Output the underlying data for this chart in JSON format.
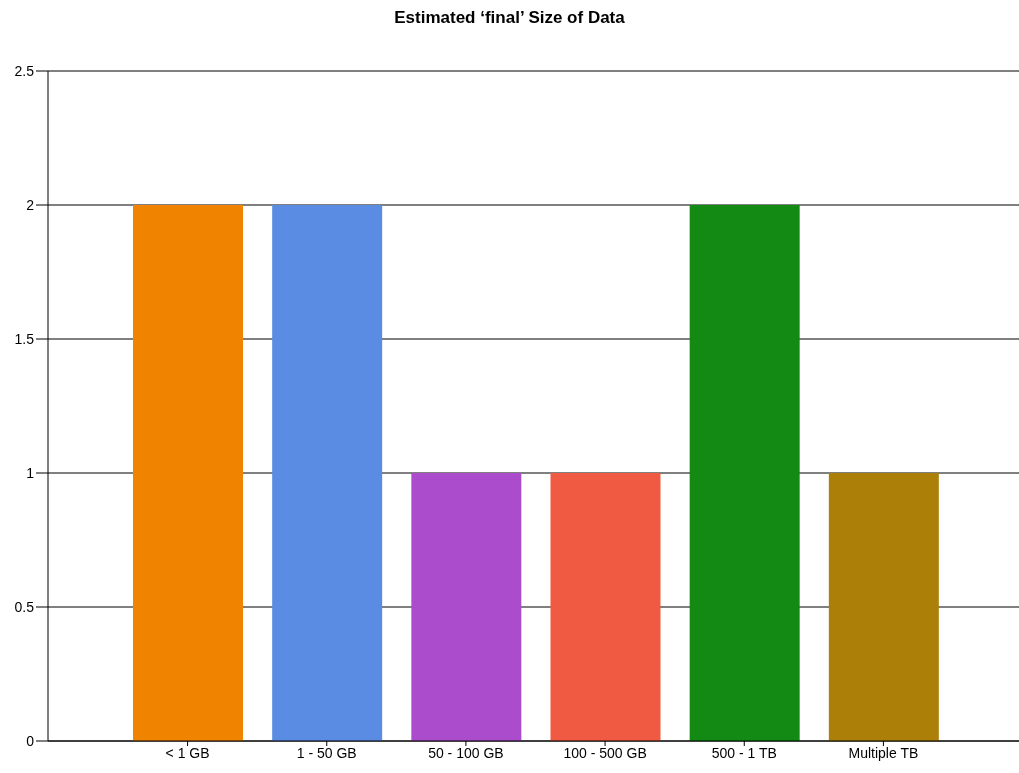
{
  "chart_data": {
    "type": "bar",
    "title": "Estimated ‘final’ Size of Data",
    "categories": [
      "< 1 GB",
      "1 - 50 GB",
      "50 - 100 GB",
      "100 - 500 GB",
      "500 - 1 TB",
      "Multiple TB"
    ],
    "values": [
      2,
      2,
      1,
      1,
      2,
      1
    ],
    "colors": [
      "#f08400",
      "#5a8ce4",
      "#aa4ccc",
      "#f05a42",
      "#138a13",
      "#ac8008"
    ],
    "ylim": [
      0,
      2.5
    ],
    "yticks": [
      0,
      0.5,
      1,
      1.5,
      2,
      2.5
    ],
    "grid": "y",
    "legend": false
  }
}
